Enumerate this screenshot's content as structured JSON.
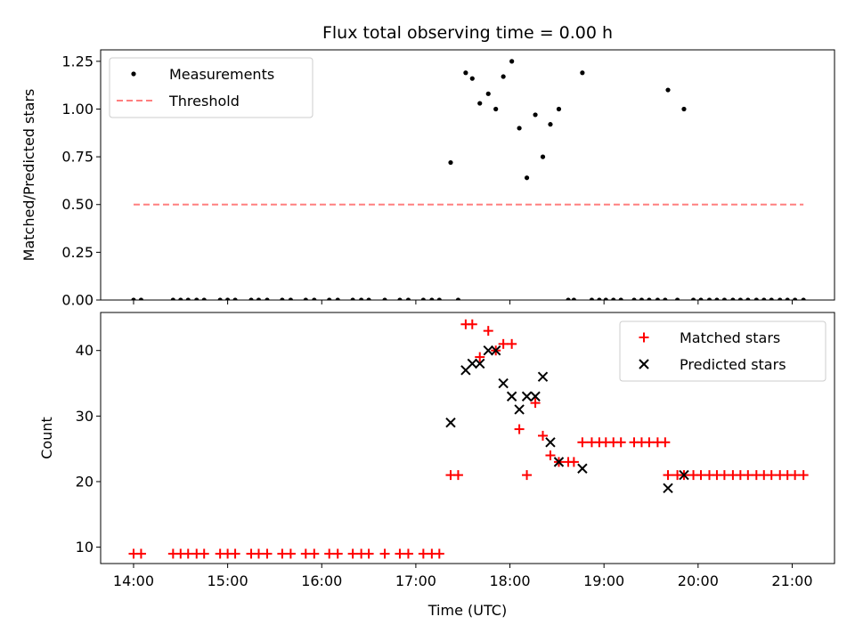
{
  "chart_data": [
    {
      "type": "scatter",
      "title": "Flux total observing time = 0.00 h",
      "xlabel": "",
      "ylabel": "Matched/Predicted stars",
      "xlim": [
        13.65,
        21.45
      ],
      "ylim": [
        0,
        1.31
      ],
      "yticks": [
        0.0,
        0.25,
        0.5,
        0.75,
        1.0,
        1.25
      ],
      "ytick_labels": [
        "0.00",
        "0.25",
        "0.50",
        "0.75",
        "1.00",
        "1.25"
      ],
      "legend_position": "top-left",
      "series": [
        {
          "name": "Measurements",
          "marker": "dot",
          "color": "#000000",
          "points": [
            [
              14.0,
              0
            ],
            [
              14.08,
              0
            ],
            [
              14.42,
              0
            ],
            [
              14.5,
              0
            ],
            [
              14.58,
              0
            ],
            [
              14.67,
              0
            ],
            [
              14.75,
              0
            ],
            [
              14.92,
              0
            ],
            [
              15.0,
              0
            ],
            [
              15.08,
              0
            ],
            [
              15.25,
              0
            ],
            [
              15.33,
              0
            ],
            [
              15.42,
              0
            ],
            [
              15.58,
              0
            ],
            [
              15.67,
              0
            ],
            [
              15.83,
              0
            ],
            [
              15.92,
              0
            ],
            [
              16.08,
              0
            ],
            [
              16.17,
              0
            ],
            [
              16.33,
              0
            ],
            [
              16.42,
              0
            ],
            [
              16.5,
              0
            ],
            [
              16.67,
              0
            ],
            [
              16.83,
              0
            ],
            [
              16.92,
              0
            ],
            [
              17.08,
              0
            ],
            [
              17.17,
              0
            ],
            [
              17.25,
              0
            ],
            [
              17.45,
              0
            ],
            [
              17.37,
              0.72
            ],
            [
              17.53,
              1.19
            ],
            [
              17.6,
              1.16
            ],
            [
              17.68,
              1.03
            ],
            [
              17.77,
              1.08
            ],
            [
              17.85,
              1.0
            ],
            [
              17.93,
              1.17
            ],
            [
              18.02,
              1.25
            ],
            [
              18.1,
              0.9
            ],
            [
              18.18,
              0.64
            ],
            [
              18.27,
              0.97
            ],
            [
              18.35,
              0.75
            ],
            [
              18.43,
              0.92
            ],
            [
              18.52,
              1.0
            ],
            [
              18.77,
              1.19
            ],
            [
              18.62,
              0
            ],
            [
              18.68,
              0
            ],
            [
              18.87,
              0
            ],
            [
              18.95,
              0
            ],
            [
              19.02,
              0
            ],
            [
              19.1,
              0
            ],
            [
              19.18,
              0
            ],
            [
              19.32,
              0
            ],
            [
              19.4,
              0
            ],
            [
              19.48,
              0
            ],
            [
              19.57,
              0
            ],
            [
              19.65,
              0
            ],
            [
              19.78,
              0
            ],
            [
              19.68,
              1.1
            ],
            [
              19.85,
              1.0
            ],
            [
              19.95,
              0
            ],
            [
              20.03,
              0
            ],
            [
              20.12,
              0
            ],
            [
              20.2,
              0
            ],
            [
              20.28,
              0
            ],
            [
              20.37,
              0
            ],
            [
              20.45,
              0
            ],
            [
              20.53,
              0
            ],
            [
              20.62,
              0
            ],
            [
              20.7,
              0
            ],
            [
              20.78,
              0
            ],
            [
              20.87,
              0
            ],
            [
              20.95,
              0
            ],
            [
              21.03,
              0
            ],
            [
              21.12,
              0
            ]
          ]
        },
        {
          "name": "Threshold",
          "marker": "dashed-line",
          "color": "#ff7f7f",
          "points": [
            [
              14.0,
              0.5
            ],
            [
              21.12,
              0.5
            ]
          ]
        }
      ]
    },
    {
      "type": "scatter",
      "title": "",
      "xlabel": "Time (UTC)",
      "ylabel": "Count",
      "xlim": [
        13.65,
        21.45
      ],
      "ylim": [
        7.5,
        45.8
      ],
      "yticks": [
        10,
        20,
        30,
        40
      ],
      "ytick_labels": [
        "10",
        "20",
        "30",
        "40"
      ],
      "xticks": [
        14,
        15,
        16,
        17,
        18,
        19,
        20,
        21
      ],
      "xtick_labels": [
        "14:00",
        "15:00",
        "16:00",
        "17:00",
        "18:00",
        "19:00",
        "20:00",
        "21:00"
      ],
      "legend_position": "top-right",
      "series": [
        {
          "name": "Matched stars",
          "marker": "plus",
          "color": "#ff0000",
          "points": [
            [
              14.0,
              9
            ],
            [
              14.08,
              9
            ],
            [
              14.42,
              9
            ],
            [
              14.5,
              9
            ],
            [
              14.58,
              9
            ],
            [
              14.67,
              9
            ],
            [
              14.75,
              9
            ],
            [
              14.92,
              9
            ],
            [
              15.0,
              9
            ],
            [
              15.08,
              9
            ],
            [
              15.25,
              9
            ],
            [
              15.33,
              9
            ],
            [
              15.42,
              9
            ],
            [
              15.58,
              9
            ],
            [
              15.67,
              9
            ],
            [
              15.83,
              9
            ],
            [
              15.92,
              9
            ],
            [
              16.08,
              9
            ],
            [
              16.17,
              9
            ],
            [
              16.33,
              9
            ],
            [
              16.42,
              9
            ],
            [
              16.5,
              9
            ],
            [
              16.67,
              9
            ],
            [
              16.83,
              9
            ],
            [
              16.92,
              9
            ],
            [
              17.08,
              9
            ],
            [
              17.17,
              9
            ],
            [
              17.25,
              9
            ],
            [
              17.37,
              21
            ],
            [
              17.45,
              21
            ],
            [
              17.53,
              44
            ],
            [
              17.6,
              44
            ],
            [
              17.68,
              39
            ],
            [
              17.77,
              43
            ],
            [
              17.85,
              40
            ],
            [
              17.93,
              41
            ],
            [
              18.02,
              41
            ],
            [
              18.1,
              28
            ],
            [
              18.18,
              21
            ],
            [
              18.27,
              32
            ],
            [
              18.35,
              27
            ],
            [
              18.43,
              24
            ],
            [
              18.52,
              23
            ],
            [
              18.62,
              23
            ],
            [
              18.68,
              23
            ],
            [
              18.77,
              26
            ],
            [
              18.87,
              26
            ],
            [
              18.95,
              26
            ],
            [
              19.02,
              26
            ],
            [
              19.1,
              26
            ],
            [
              19.18,
              26
            ],
            [
              19.32,
              26
            ],
            [
              19.4,
              26
            ],
            [
              19.48,
              26
            ],
            [
              19.57,
              26
            ],
            [
              19.65,
              26
            ],
            [
              19.68,
              21
            ],
            [
              19.78,
              21
            ],
            [
              19.85,
              21
            ],
            [
              19.95,
              21
            ],
            [
              20.03,
              21
            ],
            [
              20.12,
              21
            ],
            [
              20.2,
              21
            ],
            [
              20.28,
              21
            ],
            [
              20.37,
              21
            ],
            [
              20.45,
              21
            ],
            [
              20.53,
              21
            ],
            [
              20.62,
              21
            ],
            [
              20.7,
              21
            ],
            [
              20.78,
              21
            ],
            [
              20.87,
              21
            ],
            [
              20.95,
              21
            ],
            [
              21.03,
              21
            ],
            [
              21.12,
              21
            ]
          ]
        },
        {
          "name": "Predicted stars",
          "marker": "x",
          "color": "#000000",
          "points": [
            [
              17.37,
              29
            ],
            [
              17.53,
              37
            ],
            [
              17.6,
              38
            ],
            [
              17.68,
              38
            ],
            [
              17.77,
              40
            ],
            [
              17.85,
              40
            ],
            [
              17.93,
              35
            ],
            [
              18.02,
              33
            ],
            [
              18.1,
              31
            ],
            [
              18.18,
              33
            ],
            [
              18.27,
              33
            ],
            [
              18.35,
              36
            ],
            [
              18.43,
              26
            ],
            [
              18.52,
              23
            ],
            [
              18.77,
              22
            ],
            [
              19.68,
              19
            ],
            [
              19.85,
              21
            ]
          ]
        }
      ]
    }
  ]
}
